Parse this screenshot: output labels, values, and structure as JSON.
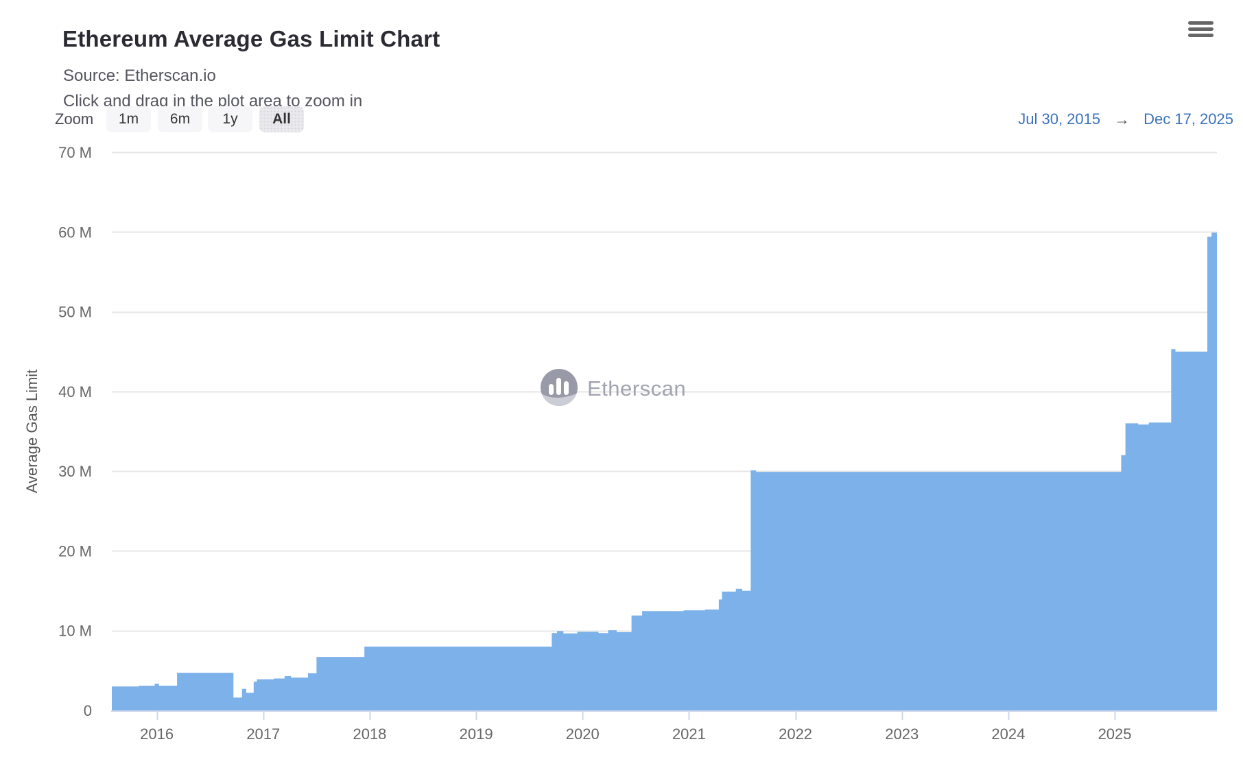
{
  "header": {
    "title": "Ethereum Average Gas Limit Chart",
    "source_line": "Source: Etherscan.io",
    "hint_line": "Click and drag in the plot area to zoom in"
  },
  "toolbar": {
    "zoom_label": "Zoom",
    "buttons": [
      {
        "label": "1m",
        "selected": false
      },
      {
        "label": "6m",
        "selected": false
      },
      {
        "label": "1y",
        "selected": false
      },
      {
        "label": "All",
        "selected": true
      }
    ],
    "range": {
      "from": "Jul 30, 2015",
      "arrow": "→",
      "to": "Dec 17, 2025"
    }
  },
  "chart_data": {
    "type": "area",
    "title": "Ethereum Average Gas Limit Chart",
    "subtitle": "Source: Etherscan.io",
    "watermark": "Etherscan",
    "legend": false,
    "grid": true,
    "x_axis": {
      "kind": "time-years",
      "min": 2015.577,
      "max": 2025.96,
      "range_labels": [
        "Jul 30, 2015",
        "Dec 17, 2025"
      ],
      "ticks": [
        2016,
        2017,
        2018,
        2019,
        2020,
        2021,
        2022,
        2023,
        2024,
        2025
      ],
      "tick_labels": [
        "2016",
        "2017",
        "2018",
        "2019",
        "2020",
        "2021",
        "2022",
        "2023",
        "2024",
        "2025"
      ]
    },
    "y_axis": {
      "title": "Average Gas Limit",
      "min": 0,
      "max": 70,
      "unit": "M",
      "ticks": [
        0,
        10,
        20,
        30,
        40,
        50,
        60,
        70
      ],
      "tick_labels": [
        "0",
        "10 M",
        "20 M",
        "30 M",
        "40 M",
        "50 M",
        "60 M",
        "70 M"
      ]
    },
    "series": [
      {
        "name": "Average Gas Limit",
        "color": "#7cb1ea",
        "step": "after",
        "unit": "millions of gas",
        "points": [
          [
            2015.577,
            3.0
          ],
          [
            2015.83,
            3.1
          ],
          [
            2015.98,
            3.35
          ],
          [
            2016.02,
            3.1
          ],
          [
            2016.19,
            4.7
          ],
          [
            2016.72,
            1.6
          ],
          [
            2016.8,
            2.7
          ],
          [
            2016.84,
            2.2
          ],
          [
            2016.91,
            3.6
          ],
          [
            2016.94,
            3.9
          ],
          [
            2017.1,
            4.0
          ],
          [
            2017.2,
            4.3
          ],
          [
            2017.26,
            4.1
          ],
          [
            2017.42,
            4.65
          ],
          [
            2017.5,
            6.7
          ],
          [
            2017.95,
            8.0
          ],
          [
            2019.71,
            9.7
          ],
          [
            2019.76,
            9.95
          ],
          [
            2019.82,
            9.65
          ],
          [
            2019.95,
            9.85
          ],
          [
            2020.15,
            9.7
          ],
          [
            2020.24,
            10.05
          ],
          [
            2020.32,
            9.8
          ],
          [
            2020.46,
            11.9
          ],
          [
            2020.56,
            12.45
          ],
          [
            2020.95,
            12.55
          ],
          [
            2021.15,
            12.65
          ],
          [
            2021.28,
            13.9
          ],
          [
            2021.31,
            14.9
          ],
          [
            2021.44,
            15.25
          ],
          [
            2021.5,
            15.0
          ],
          [
            2021.58,
            30.1
          ],
          [
            2021.63,
            29.9
          ],
          [
            2025.06,
            32.0
          ],
          [
            2025.1,
            36.0
          ],
          [
            2025.22,
            35.85
          ],
          [
            2025.32,
            36.1
          ],
          [
            2025.53,
            45.3
          ],
          [
            2025.57,
            45.0
          ],
          [
            2025.87,
            59.4
          ],
          [
            2025.91,
            59.9
          ],
          [
            2025.96,
            60.0
          ]
        ]
      }
    ]
  },
  "colors": {
    "series_fill": "#7cb1ea",
    "gridline": "#e6e6e6",
    "axis_line": "#ccd6eb",
    "axis_label": "#666666",
    "axis_title": "#555558",
    "title": "#2b2b33",
    "subtitle": "#55565e",
    "link_blue": "#3a72ba",
    "watermark": "#9a9ca9",
    "watermark_logo": "#9092a1"
  }
}
